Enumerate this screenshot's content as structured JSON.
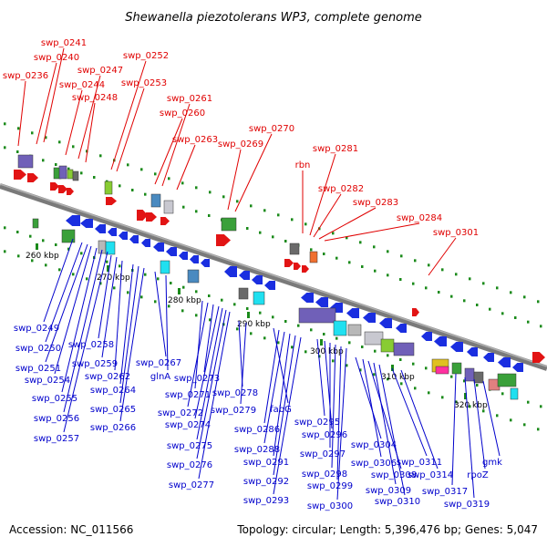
{
  "title": "Shewanella piezotolerans WP3, complete genome",
  "footer": {
    "accession": "Accession: NC_011566",
    "summary": "Topology: circular; Length: 5,396,476 bp; Genes: 5,047"
  },
  "colors": {
    "forward_label": "#e00000",
    "reverse_label": "#0000cc",
    "backbone": "#808080",
    "tick": "#1a8a1a"
  },
  "scale": {
    "ticks": [
      "260 kbp",
      "270 kbp",
      "280 kbp",
      "290 kbp",
      "300 kbp",
      "310 kbp",
      "320 kbp"
    ]
  },
  "top_labels": [
    "swp_0236",
    "swp_0240",
    "swp_0241",
    "swp_0244",
    "swp_0247",
    "swp_0248",
    "swp_0252",
    "swp_0253",
    "swp_0260",
    "swp_0261",
    "swp_0263",
    "swp_0269",
    "swp_0270",
    "rbn",
    "swp_0281",
    "swp_0282",
    "swp_0283",
    "swp_0284",
    "swp_0301"
  ],
  "bottom_labels": [
    "swp_0249",
    "swp_0250",
    "swp_0251",
    "swp_0254",
    "swp_0255",
    "swp_0256",
    "swp_0257",
    "swp_0258",
    "swp_0259",
    "swp_0262",
    "swp_0264",
    "swp_0265",
    "swp_0266",
    "swp_0267",
    "glnA",
    "swp_0271",
    "swp_0272",
    "swp_0273",
    "swp_0274",
    "swp_0275",
    "swp_0276",
    "swp_0277",
    "swp_0278",
    "swp_0279",
    "fabG",
    "swp_0286",
    "swp_0288",
    "swp_0291",
    "swp_0292",
    "swp_0293",
    "swp_0295",
    "swp_0296",
    "swp_0297",
    "swp_0298",
    "swp_0299",
    "swp_0300",
    "swp_0304",
    "swp_0306",
    "swp_0308",
    "swp_0309",
    "swp_0310",
    "swp_0311",
    "swp_0314",
    "swp_0317",
    "swp_0319",
    "rpoZ",
    "gmk"
  ]
}
